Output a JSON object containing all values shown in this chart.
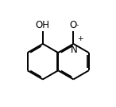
{
  "bg_color": "#ffffff",
  "line_color": "#000000",
  "text_color": "#000000",
  "line_width": 1.4,
  "font_size": 8.5,
  "oh_label": "OH",
  "o_label": "O",
  "o_charge": "-",
  "n_label": "N",
  "n_charge": "+"
}
